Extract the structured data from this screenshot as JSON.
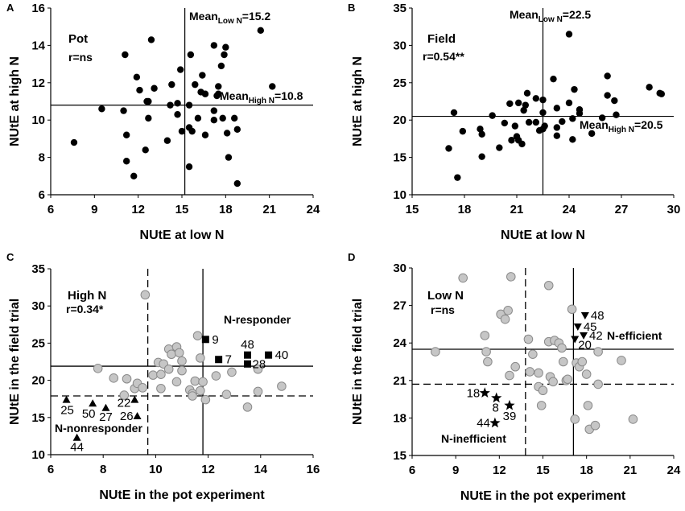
{
  "chart_data": [
    {
      "panel_label": "A",
      "type": "scatter",
      "xlabel": "NUtE at low N",
      "ylabel": "NUtE at high N",
      "xlim": [
        6,
        24
      ],
      "ylim": [
        6,
        16
      ],
      "xticks": [
        6,
        9,
        12,
        15,
        18,
        21,
        24
      ],
      "yticks": [
        6,
        8,
        10,
        12,
        14,
        16
      ],
      "title": "Pot",
      "r": "r=ns",
      "mean_x": {
        "main": "Mean",
        "sub": "Low N",
        "value": "=15.2",
        "at": 15.2
      },
      "mean_y": {
        "main": "Mean",
        "sub": "High N",
        "value": "=10.8",
        "at": 10.8
      },
      "ref_lines": [],
      "point_style": "black",
      "points": [
        [
          7.6,
          8.8
        ],
        [
          9.5,
          10.6
        ],
        [
          11.0,
          10.5
        ],
        [
          11.1,
          13.5
        ],
        [
          11.2,
          9.2
        ],
        [
          11.2,
          7.8
        ],
        [
          11.7,
          7.0
        ],
        [
          11.9,
          12.3
        ],
        [
          12.1,
          11.6
        ],
        [
          12.5,
          8.4
        ],
        [
          12.6,
          11.0
        ],
        [
          12.7,
          11.0
        ],
        [
          12.7,
          10.1
        ],
        [
          12.9,
          14.3
        ],
        [
          13.1,
          11.7
        ],
        [
          14.0,
          8.9
        ],
        [
          14.2,
          10.8
        ],
        [
          14.3,
          11.9
        ],
        [
          14.7,
          10.9
        ],
        [
          14.7,
          10.3
        ],
        [
          14.9,
          12.7
        ],
        [
          15.0,
          9.4
        ],
        [
          15.5,
          10.8
        ],
        [
          15.5,
          9.6
        ],
        [
          15.6,
          13.5
        ],
        [
          15.7,
          9.4
        ],
        [
          15.5,
          7.5
        ],
        [
          15.9,
          11.9
        ],
        [
          16.1,
          10.1
        ],
        [
          16.3,
          11.5
        ],
        [
          16.6,
          11.4
        ],
        [
          16.4,
          12.4
        ],
        [
          16.6,
          9.2
        ],
        [
          17.2,
          10.0
        ],
        [
          17.2,
          10.5
        ],
        [
          17.2,
          14.0
        ],
        [
          17.4,
          11.3
        ],
        [
          17.5,
          11.4
        ],
        [
          17.5,
          11.8
        ],
        [
          17.7,
          12.9
        ],
        [
          17.8,
          10.1
        ],
        [
          17.9,
          13.5
        ],
        [
          18.0,
          13.9
        ],
        [
          18.1,
          9.3
        ],
        [
          18.2,
          8.0
        ],
        [
          18.6,
          10.1
        ],
        [
          18.8,
          9.5
        ],
        [
          18.8,
          6.6
        ],
        [
          20.4,
          14.8
        ],
        [
          21.2,
          11.8
        ]
      ],
      "groups": [],
      "group_labels": []
    },
    {
      "panel_label": "B",
      "type": "scatter",
      "xlabel": "NUtE at low N",
      "ylabel": "NUtE at high N",
      "xlim": [
        15,
        30
      ],
      "ylim": [
        10,
        35
      ],
      "xticks": [
        15,
        18,
        21,
        24,
        27,
        30
      ],
      "yticks": [
        10,
        15,
        20,
        25,
        30,
        35
      ],
      "title": "Field",
      "r": "r=0.54**",
      "mean_x": {
        "main": "Mean",
        "sub": "Low N",
        "value": "=22.5",
        "at": 22.5
      },
      "mean_y": {
        "main": "Mean",
        "sub": "High N",
        "value": "=20.5",
        "at": 20.5
      },
      "ref_lines": [],
      "point_style": "black",
      "points": [
        [
          17.1,
          16.2
        ],
        [
          17.4,
          21.0
        ],
        [
          17.6,
          12.3
        ],
        [
          17.9,
          18.5
        ],
        [
          18.9,
          18.8
        ],
        [
          19.0,
          18.1
        ],
        [
          19.0,
          15.1
        ],
        [
          19.6,
          20.6
        ],
        [
          20.0,
          16.3
        ],
        [
          20.3,
          19.6
        ],
        [
          20.6,
          22.2
        ],
        [
          20.7,
          17.3
        ],
        [
          20.9,
          19.2
        ],
        [
          21.0,
          17.8
        ],
        [
          21.1,
          22.3
        ],
        [
          21.1,
          17.3
        ],
        [
          21.3,
          16.8
        ],
        [
          21.4,
          21.3
        ],
        [
          21.5,
          22.0
        ],
        [
          21.6,
          23.6
        ],
        [
          21.7,
          19.7
        ],
        [
          22.1,
          22.9
        ],
        [
          22.1,
          19.7
        ],
        [
          22.3,
          18.6
        ],
        [
          22.5,
          18.8
        ],
        [
          22.5,
          22.7
        ],
        [
          22.5,
          21.0
        ],
        [
          22.6,
          19.2
        ],
        [
          23.1,
          25.5
        ],
        [
          23.3,
          21.6
        ],
        [
          23.3,
          19.0
        ],
        [
          23.3,
          17.9
        ],
        [
          23.6,
          19.8
        ],
        [
          24.0,
          22.3
        ],
        [
          24.0,
          31.5
        ],
        [
          24.2,
          17.4
        ],
        [
          24.2,
          20.2
        ],
        [
          24.3,
          24.1
        ],
        [
          24.6,
          21.4
        ],
        [
          24.6,
          20.9
        ],
        [
          25.3,
          18.2
        ],
        [
          25.9,
          20.3
        ],
        [
          26.2,
          25.9
        ],
        [
          26.2,
          23.3
        ],
        [
          26.6,
          22.6
        ],
        [
          26.7,
          20.7
        ],
        [
          28.6,
          24.4
        ],
        [
          29.2,
          23.6
        ],
        [
          29.3,
          23.5
        ]
      ],
      "groups": [],
      "group_labels": []
    },
    {
      "panel_label": "C",
      "type": "scatter",
      "xlabel": "NUtE in the pot experiment",
      "ylabel": "NUtE in the field trial",
      "xlim": [
        6,
        16
      ],
      "ylim": [
        10,
        35
      ],
      "xticks": [
        6,
        8,
        10,
        12,
        14,
        16
      ],
      "yticks": [
        10,
        15,
        20,
        25,
        30,
        35
      ],
      "title": "High N",
      "r": "r=0.34*",
      "ref_lines": [
        {
          "axis": "x",
          "value": 11.8,
          "style": "solid"
        },
        {
          "axis": "y",
          "value": 21.9,
          "style": "solid"
        },
        {
          "axis": "x",
          "value": 9.7,
          "style": "dashed"
        },
        {
          "axis": "y",
          "value": 17.9,
          "style": "dashed"
        }
      ],
      "point_style": "gray",
      "points": [
        [
          7.8,
          21.6
        ],
        [
          8.4,
          20.3
        ],
        [
          8.9,
          20.2
        ],
        [
          8.8,
          18.0
        ],
        [
          9.2,
          18.9
        ],
        [
          9.3,
          19.6
        ],
        [
          9.5,
          19.0
        ],
        [
          9.6,
          31.5
        ],
        [
          9.9,
          20.7
        ],
        [
          10.1,
          22.4
        ],
        [
          10.2,
          20.8
        ],
        [
          10.2,
          18.9
        ],
        [
          10.3,
          22.2
        ],
        [
          10.5,
          24.2
        ],
        [
          10.5,
          21.5
        ],
        [
          10.6,
          23.5
        ],
        [
          10.8,
          19.8
        ],
        [
          10.8,
          24.5
        ],
        [
          10.9,
          23.7
        ],
        [
          11.0,
          22.6
        ],
        [
          11.0,
          21.3
        ],
        [
          11.3,
          18.7
        ],
        [
          11.4,
          18.2
        ],
        [
          11.4,
          17.9
        ],
        [
          11.5,
          19.9
        ],
        [
          11.6,
          26.0
        ],
        [
          11.7,
          23.0
        ],
        [
          11.7,
          18.6
        ],
        [
          11.8,
          19.8
        ],
        [
          11.9,
          17.4
        ],
        [
          12.3,
          20.6
        ],
        [
          12.7,
          18.1
        ],
        [
          12.9,
          21.1
        ],
        [
          13.5,
          16.4
        ],
        [
          13.9,
          21.5
        ],
        [
          13.9,
          18.5
        ],
        [
          14.8,
          19.2
        ]
      ],
      "groups": [
        {
          "marker": "square",
          "points": [
            {
              "label": "9",
              "x": 11.9,
              "y": 25.5
            },
            {
              "label": "7",
              "x": 12.4,
              "y": 22.8
            },
            {
              "label": "48",
              "x": 13.5,
              "y": 23.4
            },
            {
              "label": "28",
              "x": 13.5,
              "y": 22.2
            },
            {
              "label": "40",
              "x": 14.3,
              "y": 23.4
            }
          ]
        },
        {
          "marker": "triangle-up",
          "points": [
            {
              "label": "25",
              "x": 6.6,
              "y": 17.4
            },
            {
              "label": "50",
              "x": 7.6,
              "y": 16.9
            },
            {
              "label": "27",
              "x": 8.1,
              "y": 16.3
            },
            {
              "label": "22",
              "x": 9.2,
              "y": 17.4
            },
            {
              "label": "26",
              "x": 9.3,
              "y": 15.2
            },
            {
              "label": "44",
              "x": 7.0,
              "y": 12.3
            }
          ]
        }
      ],
      "group_labels": [
        "N-responder",
        "N-nonresponder"
      ]
    },
    {
      "panel_label": "D",
      "type": "scatter",
      "xlabel": "NUtE in the pot experiment",
      "ylabel": "NUtE in the field trial",
      "xlim": [
        6,
        24
      ],
      "ylim": [
        15,
        30
      ],
      "xticks": [
        6,
        9,
        12,
        15,
        18,
        21,
        24
      ],
      "yticks": [
        15,
        18,
        21,
        24,
        27,
        30
      ],
      "title": "Low N",
      "r": "r=ns",
      "ref_lines": [
        {
          "axis": "x",
          "value": 17.1,
          "style": "solid"
        },
        {
          "axis": "y",
          "value": 23.5,
          "style": "solid"
        },
        {
          "axis": "x",
          "value": 13.8,
          "style": "dashed"
        },
        {
          "axis": "y",
          "value": 20.7,
          "style": "dashed"
        }
      ],
      "point_style": "gray",
      "points": [
        [
          7.6,
          23.3
        ],
        [
          9.5,
          29.2
        ],
        [
          11.0,
          24.6
        ],
        [
          11.1,
          23.3
        ],
        [
          11.2,
          22.5
        ],
        [
          12.1,
          26.3
        ],
        [
          12.4,
          25.9
        ],
        [
          12.6,
          26.6
        ],
        [
          12.7,
          21.4
        ],
        [
          12.8,
          29.3
        ],
        [
          13.1,
          22.1
        ],
        [
          14.0,
          24.3
        ],
        [
          14.1,
          21.7
        ],
        [
          14.3,
          23.1
        ],
        [
          14.7,
          21.6
        ],
        [
          14.7,
          20.5
        ],
        [
          15.0,
          20.2
        ],
        [
          14.9,
          19.0
        ],
        [
          15.4,
          24.1
        ],
        [
          15.4,
          28.6
        ],
        [
          15.5,
          21.3
        ],
        [
          15.7,
          20.9
        ],
        [
          15.8,
          24.2
        ],
        [
          16.1,
          24.0
        ],
        [
          16.3,
          23.6
        ],
        [
          16.4,
          22.5
        ],
        [
          16.6,
          21.0
        ],
        [
          16.7,
          21.1
        ],
        [
          17.0,
          26.7
        ],
        [
          17.2,
          17.9
        ],
        [
          17.3,
          22.4
        ],
        [
          17.5,
          22.1
        ],
        [
          17.7,
          22.5
        ],
        [
          18.0,
          21.5
        ],
        [
          18.1,
          19.0
        ],
        [
          18.2,
          17.1
        ],
        [
          18.6,
          17.4
        ],
        [
          18.8,
          23.3
        ],
        [
          18.8,
          20.7
        ],
        [
          20.4,
          22.6
        ],
        [
          21.2,
          17.9
        ]
      ],
      "groups": [
        {
          "marker": "triangle-down",
          "points": [
            {
              "label": "48",
              "x": 17.9,
              "y": 26.2
            },
            {
              "label": "45",
              "x": 17.4,
              "y": 25.3
            },
            {
              "label": "42",
              "x": 17.8,
              "y": 24.6
            },
            {
              "label": "20",
              "x": 17.2,
              "y": 24.3
            }
          ]
        },
        {
          "marker": "star",
          "points": [
            {
              "label": "18",
              "x": 11.0,
              "y": 20.0
            },
            {
              "label": "8",
              "x": 11.8,
              "y": 19.6
            },
            {
              "label": "39",
              "x": 12.7,
              "y": 19.0
            },
            {
              "label": "44",
              "x": 11.7,
              "y": 17.6
            }
          ]
        }
      ],
      "group_labels": [
        "N-efficient",
        "N-inefficient"
      ]
    }
  ]
}
